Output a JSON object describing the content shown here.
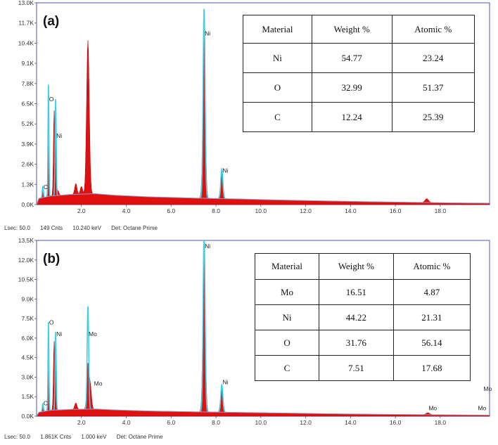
{
  "chart_data": [
    {
      "type": "area",
      "panel_label": "(a)",
      "xlabel": "",
      "ylabel": "",
      "xlim": [
        0,
        20.2
      ],
      "ylim": [
        0,
        13000
      ],
      "x_ticks": [
        "2.0",
        "4.0",
        "6.0",
        "8.0",
        "10.0",
        "12.0",
        "14.0",
        "16.0",
        "18.0"
      ],
      "x_tick_values": [
        2,
        4,
        6,
        8,
        10,
        12,
        14,
        16,
        18
      ],
      "y_ticks": [
        "0.0K",
        "1.3K",
        "2.6K",
        "3.9K",
        "5.2K",
        "6.5K",
        "7.8K",
        "9.1K",
        "10.4K",
        "11.7K",
        "13.0K"
      ],
      "y_tick_values": [
        0,
        1300,
        2600,
        3900,
        5200,
        6500,
        7800,
        9100,
        10400,
        11700,
        13000
      ],
      "red_peaks": [
        {
          "x": 0.28,
          "h": 450,
          "w": 0.03
        },
        {
          "x": 0.53,
          "h": 5800,
          "w": 0.025
        },
        {
          "x": 0.78,
          "h": 5200,
          "w": 0.03
        },
        {
          "x": 0.85,
          "h": 3800,
          "w": 0.03
        },
        {
          "x": 0.96,
          "h": 300,
          "w": 0.04
        },
        {
          "x": 1.75,
          "h": 700,
          "w": 0.05
        },
        {
          "x": 2.29,
          "h": 9900,
          "w": 0.06
        },
        {
          "x": 2.0,
          "h": 500,
          "w": 0.05
        },
        {
          "x": 7.47,
          "h": 10600,
          "w": 0.055
        },
        {
          "x": 8.26,
          "h": 1600,
          "w": 0.055
        },
        {
          "x": 17.4,
          "h": 250,
          "w": 0.08
        }
      ],
      "cyan_peaks": [
        {
          "x": 0.28,
          "h": 700,
          "w": 0.025
        },
        {
          "x": 0.53,
          "h": 7200,
          "w": 0.02
        },
        {
          "x": 0.85,
          "h": 6200,
          "w": 0.025
        },
        {
          "x": 7.47,
          "h": 12200,
          "w": 0.045
        },
        {
          "x": 8.26,
          "h": 1900,
          "w": 0.045
        }
      ],
      "background_points": [
        [
          0,
          0
        ],
        [
          0.1,
          400
        ],
        [
          0.6,
          550
        ],
        [
          1.5,
          650
        ],
        [
          2.6,
          700
        ],
        [
          3.5,
          600
        ],
        [
          5,
          500
        ],
        [
          7,
          420
        ],
        [
          9,
          360
        ],
        [
          11,
          290
        ],
        [
          13,
          230
        ],
        [
          15,
          180
        ],
        [
          17,
          140
        ],
        [
          18.5,
          110
        ],
        [
          20.2,
          90
        ]
      ],
      "element_labels": [
        {
          "text": "O",
          "x": 0.53,
          "y": 6650
        },
        {
          "text": "Ni",
          "x": 0.85,
          "y": 4300
        },
        {
          "text": "C",
          "x": 0.28,
          "y": 1000
        },
        {
          "text": "Ni",
          "x": 7.47,
          "y": 10900
        },
        {
          "text": "Ni",
          "x": 8.26,
          "y": 2050
        }
      ],
      "status": [
        "Lsec: 50.0",
        "149 Cnts",
        "10.240 keV",
        "Det: Octane Prime"
      ],
      "table": {
        "headers": [
          "Material",
          "Weight %",
          "Atomic %"
        ],
        "rows": [
          [
            "Ni",
            "54.77",
            "23.24"
          ],
          [
            "O",
            "32.99",
            "51.37"
          ],
          [
            "C",
            "12.24",
            "25.39"
          ]
        ]
      }
    },
    {
      "type": "area",
      "panel_label": "(b)",
      "xlabel": "",
      "ylabel": "",
      "xlim": [
        0,
        20.2
      ],
      "ylim": [
        0,
        13500
      ],
      "x_ticks": [
        "2.0",
        "4.0",
        "6.0",
        "8.0",
        "10.0",
        "12.0",
        "14.0",
        "16.0",
        "18.0"
      ],
      "x_tick_values": [
        2,
        4,
        6,
        8,
        10,
        12,
        14,
        16,
        18
      ],
      "y_ticks": [
        "0.0K",
        "1.5K",
        "3.0K",
        "4.5K",
        "6.0K",
        "7.5K",
        "9.0K",
        "10.5K",
        "12.0K",
        "13.5K"
      ],
      "y_tick_values": [
        0,
        1500,
        3000,
        4500,
        6000,
        7500,
        9000,
        10500,
        12000,
        13500
      ],
      "red_peaks": [
        {
          "x": 0.28,
          "h": 400,
          "w": 0.03
        },
        {
          "x": 0.53,
          "h": 5700,
          "w": 0.025
        },
        {
          "x": 0.78,
          "h": 5000,
          "w": 0.03
        },
        {
          "x": 0.85,
          "h": 3800,
          "w": 0.03
        },
        {
          "x": 1.75,
          "h": 500,
          "w": 0.05
        },
        {
          "x": 2.29,
          "h": 3400,
          "w": 0.05
        },
        {
          "x": 2.4,
          "h": 1700,
          "w": 0.05
        },
        {
          "x": 7.47,
          "h": 12000,
          "w": 0.055
        },
        {
          "x": 8.26,
          "h": 1900,
          "w": 0.055
        },
        {
          "x": 17.45,
          "h": 150,
          "w": 0.08
        }
      ],
      "cyan_peaks": [
        {
          "x": 0.28,
          "h": 600,
          "w": 0.025
        },
        {
          "x": 0.53,
          "h": 6800,
          "w": 0.02
        },
        {
          "x": 0.85,
          "h": 6000,
          "w": 0.025
        },
        {
          "x": 2.29,
          "h": 7900,
          "w": 0.035
        },
        {
          "x": 7.47,
          "h": 13700,
          "w": 0.045
        },
        {
          "x": 8.26,
          "h": 2100,
          "w": 0.045
        }
      ],
      "background_points": [
        [
          0,
          0
        ],
        [
          0.1,
          300
        ],
        [
          0.6,
          450
        ],
        [
          1.5,
          520
        ],
        [
          2.6,
          550
        ],
        [
          3.5,
          480
        ],
        [
          5,
          400
        ],
        [
          7,
          340
        ],
        [
          9,
          290
        ],
        [
          11,
          240
        ],
        [
          13,
          190
        ],
        [
          15,
          150
        ],
        [
          17,
          120
        ],
        [
          18.5,
          100
        ],
        [
          20.2,
          80
        ]
      ],
      "element_labels": [
        {
          "text": "O",
          "x": 0.53,
          "y": 7050
        },
        {
          "text": "Ni",
          "x": 0.85,
          "y": 6150
        },
        {
          "text": "C",
          "x": 0.28,
          "y": 850
        },
        {
          "text": "Mo",
          "x": 2.29,
          "y": 6150
        },
        {
          "text": "Mo",
          "x": 2.53,
          "y": 2350
        },
        {
          "text": "Ni",
          "x": 7.47,
          "y": 12900
        },
        {
          "text": "Ni",
          "x": 8.26,
          "y": 2450
        },
        {
          "text": "Mo",
          "x": 17.45,
          "y": 450
        },
        {
          "text": "Mo",
          "x": 19.65,
          "y": 450
        },
        {
          "text": "Mo",
          "x": 19.9,
          "y": 1950
        }
      ],
      "status": [
        "Lsec: 50.0",
        "1.861K Cnts",
        "1.000 keV",
        "Det: Octane Prime"
      ],
      "table": {
        "headers": [
          "Material",
          "Weight %",
          "Atomic %"
        ],
        "rows": [
          [
            "Mo",
            "16.51",
            "4.87"
          ],
          [
            "Ni",
            "44.22",
            "21.31"
          ],
          [
            "O",
            "31.76",
            "56.14"
          ],
          [
            "C",
            "7.51",
            "17.68"
          ]
        ]
      }
    }
  ],
  "colors": {
    "frame": "#6a6fc8",
    "red_fill": "#e01010",
    "red_edge": "#b00000",
    "cyan": "#3fd0e6",
    "baseline": "#8fa0c8",
    "label": "#333333"
  }
}
